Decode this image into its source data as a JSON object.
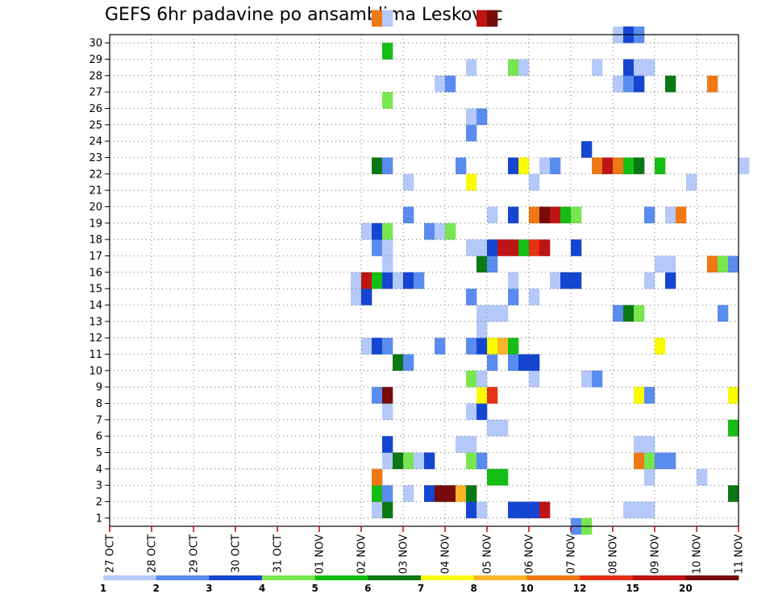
{
  "chart_data": {
    "type": "heatmap",
    "title": "GEFS 6hr padavine po ansamblima Leskovac",
    "xlabel": "",
    "ylabel": "",
    "x_tick_labels": [
      "27 OCT",
      "28 OCT",
      "29 OCT",
      "30 OCT",
      "31 OCT",
      "01 NOV",
      "02 NOV",
      "03 NOV",
      "04 NOV",
      "05 NOV",
      "06 NOV",
      "07 NOV",
      "08 NOV",
      "09 NOV",
      "10 NOV",
      "11 NOV"
    ],
    "y_tick_labels": [
      "1",
      "2",
      "3",
      "4",
      "5",
      "6",
      "7",
      "8",
      "9",
      "10",
      "11",
      "12",
      "13",
      "14",
      "15",
      "16",
      "17",
      "18",
      "19",
      "20",
      "21",
      "22",
      "23",
      "24",
      "25",
      "26",
      "27",
      "28",
      "29",
      "30"
    ],
    "time_steps_per_day": 4,
    "x_range_steps": [
      0,
      60
    ],
    "y_range": [
      0,
      30
    ],
    "grid": true,
    "legend_placement": "bottom",
    "legend": {
      "labels": [
        "1",
        "2",
        "3",
        "4",
        "5",
        "6",
        "7",
        "8",
        "10",
        "12",
        "15",
        "20"
      ],
      "colors": [
        "#b4c8fa",
        "#5a8cf0",
        "#1446d2",
        "#78e650",
        "#14be14",
        "#0a7814",
        "#fafa00",
        "#fab428",
        "#f07814",
        "#e63214",
        "#be1414",
        "#780a0a"
      ]
    },
    "cells": [
      [
        25,
        1,
        0
      ],
      [
        26,
        1,
        5
      ],
      [
        34,
        1,
        2
      ],
      [
        35,
        1,
        0
      ],
      [
        38,
        1,
        2
      ],
      [
        39,
        1,
        2
      ],
      [
        40,
        1,
        2
      ],
      [
        41,
        1,
        10
      ],
      [
        44,
        0,
        1
      ],
      [
        45,
        0,
        3
      ],
      [
        49,
        1,
        0
      ],
      [
        50,
        1,
        0
      ],
      [
        51,
        1,
        0
      ],
      [
        25,
        2,
        4
      ],
      [
        26,
        2,
        1
      ],
      [
        28,
        2,
        0
      ],
      [
        30,
        2,
        2
      ],
      [
        31,
        2,
        11
      ],
      [
        32,
        2,
        11
      ],
      [
        33,
        2,
        7
      ],
      [
        34,
        2,
        5
      ],
      [
        59,
        2,
        5
      ],
      [
        25,
        3,
        8
      ],
      [
        36,
        3,
        4
      ],
      [
        37,
        3,
        4
      ],
      [
        51,
        3,
        0
      ],
      [
        56,
        3,
        0
      ],
      [
        26,
        4,
        0
      ],
      [
        27,
        4,
        5
      ],
      [
        28,
        4,
        3
      ],
      [
        29,
        4,
        0
      ],
      [
        30,
        4,
        2
      ],
      [
        34,
        4,
        3
      ],
      [
        35,
        4,
        1
      ],
      [
        50,
        4,
        8
      ],
      [
        51,
        4,
        3
      ],
      [
        52,
        4,
        1
      ],
      [
        53,
        4,
        1
      ],
      [
        26,
        5,
        2
      ],
      [
        33,
        5,
        0
      ],
      [
        34,
        5,
        0
      ],
      [
        50,
        5,
        0
      ],
      [
        51,
        5,
        0
      ],
      [
        36,
        6,
        0
      ],
      [
        37,
        6,
        0
      ],
      [
        59,
        6,
        4
      ],
      [
        26,
        7,
        0
      ],
      [
        34,
        7,
        0
      ],
      [
        35,
        7,
        2
      ],
      [
        25,
        8,
        1
      ],
      [
        26,
        8,
        11
      ],
      [
        35,
        8,
        6
      ],
      [
        36,
        8,
        9
      ],
      [
        50,
        8,
        6
      ],
      [
        51,
        8,
        1
      ],
      [
        59,
        8,
        6
      ],
      [
        34,
        9,
        3
      ],
      [
        35,
        9,
        0
      ],
      [
        40,
        9,
        0
      ],
      [
        45,
        9,
        0
      ],
      [
        46,
        9,
        1
      ],
      [
        27,
        10,
        5
      ],
      [
        28,
        10,
        1
      ],
      [
        36,
        10,
        1
      ],
      [
        38,
        10,
        1
      ],
      [
        39,
        10,
        2
      ],
      [
        40,
        10,
        2
      ],
      [
        24,
        11,
        0
      ],
      [
        25,
        11,
        2
      ],
      [
        26,
        11,
        1
      ],
      [
        31,
        11,
        1
      ],
      [
        34,
        11,
        1
      ],
      [
        35,
        11,
        2
      ],
      [
        36,
        11,
        6
      ],
      [
        37,
        11,
        7
      ],
      [
        38,
        11,
        4
      ],
      [
        52,
        11,
        6
      ],
      [
        35,
        12,
        0
      ],
      [
        35,
        13,
        0
      ],
      [
        36,
        13,
        0
      ],
      [
        37,
        13,
        0
      ],
      [
        48,
        13,
        1
      ],
      [
        49,
        13,
        5
      ],
      [
        50,
        13,
        3
      ],
      [
        58,
        13,
        1
      ],
      [
        23,
        14,
        0
      ],
      [
        24,
        14,
        2
      ],
      [
        34,
        14,
        1
      ],
      [
        38,
        14,
        1
      ],
      [
        40,
        14,
        0
      ],
      [
        23,
        15,
        0
      ],
      [
        24,
        15,
        10
      ],
      [
        25,
        15,
        4
      ],
      [
        26,
        15,
        2
      ],
      [
        27,
        15,
        0
      ],
      [
        28,
        15,
        2
      ],
      [
        29,
        15,
        1
      ],
      [
        38,
        15,
        0
      ],
      [
        42,
        15,
        0
      ],
      [
        43,
        15,
        2
      ],
      [
        44,
        15,
        2
      ],
      [
        51,
        15,
        0
      ],
      [
        53,
        15,
        2
      ],
      [
        26,
        16,
        0
      ],
      [
        35,
        16,
        5
      ],
      [
        36,
        16,
        1
      ],
      [
        52,
        16,
        0
      ],
      [
        53,
        16,
        0
      ],
      [
        57,
        16,
        8
      ],
      [
        58,
        16,
        3
      ],
      [
        59,
        16,
        1
      ],
      [
        25,
        17,
        1
      ],
      [
        26,
        17,
        0
      ],
      [
        34,
        17,
        0
      ],
      [
        35,
        17,
        0
      ],
      [
        36,
        17,
        2
      ],
      [
        37,
        17,
        10
      ],
      [
        38,
        17,
        10
      ],
      [
        39,
        17,
        4
      ],
      [
        40,
        17,
        9
      ],
      [
        41,
        17,
        10
      ],
      [
        44,
        17,
        2
      ],
      [
        24,
        18,
        0
      ],
      [
        25,
        18,
        2
      ],
      [
        26,
        18,
        3
      ],
      [
        30,
        18,
        1
      ],
      [
        31,
        18,
        0
      ],
      [
        32,
        18,
        3
      ],
      [
        28,
        19,
        1
      ],
      [
        36,
        19,
        0
      ],
      [
        38,
        19,
        2
      ],
      [
        40,
        19,
        8
      ],
      [
        41,
        19,
        11
      ],
      [
        42,
        19,
        10
      ],
      [
        43,
        19,
        4
      ],
      [
        44,
        19,
        3
      ],
      [
        51,
        19,
        1
      ],
      [
        53,
        19,
        0
      ],
      [
        54,
        19,
        8
      ],
      [
        28,
        21,
        0
      ],
      [
        34,
        21,
        6
      ],
      [
        40,
        21,
        0
      ],
      [
        55,
        21,
        0
      ],
      [
        25,
        22,
        5
      ],
      [
        26,
        22,
        1
      ],
      [
        33,
        22,
        1
      ],
      [
        38,
        22,
        2
      ],
      [
        39,
        22,
        6
      ],
      [
        41,
        22,
        0
      ],
      [
        42,
        22,
        1
      ],
      [
        46,
        22,
        8
      ],
      [
        47,
        22,
        10
      ],
      [
        48,
        22,
        8
      ],
      [
        49,
        22,
        4
      ],
      [
        50,
        22,
        5
      ],
      [
        52,
        22,
        4
      ],
      [
        60,
        22,
        0
      ],
      [
        45,
        23,
        2
      ],
      [
        34,
        24,
        1
      ],
      [
        34,
        25,
        0
      ],
      [
        35,
        25,
        1
      ],
      [
        26,
        26,
        3
      ],
      [
        31,
        27,
        0
      ],
      [
        32,
        27,
        1
      ],
      [
        48,
        27,
        0
      ],
      [
        49,
        27,
        1
      ],
      [
        50,
        27,
        2
      ],
      [
        53,
        27,
        5
      ],
      [
        57,
        27,
        8
      ],
      [
        34,
        28,
        0
      ],
      [
        38,
        28,
        3
      ],
      [
        39,
        28,
        0
      ],
      [
        46,
        28,
        0
      ],
      [
        49,
        28,
        2
      ],
      [
        50,
        28,
        0
      ],
      [
        51,
        28,
        0
      ],
      [
        26,
        29,
        4
      ],
      [
        48,
        30,
        0
      ],
      [
        49,
        30,
        2
      ],
      [
        50,
        30,
        1
      ],
      [
        25,
        31,
        8
      ],
      [
        26,
        31,
        0
      ],
      [
        35,
        31,
        10
      ],
      [
        36,
        31,
        11
      ]
    ]
  }
}
